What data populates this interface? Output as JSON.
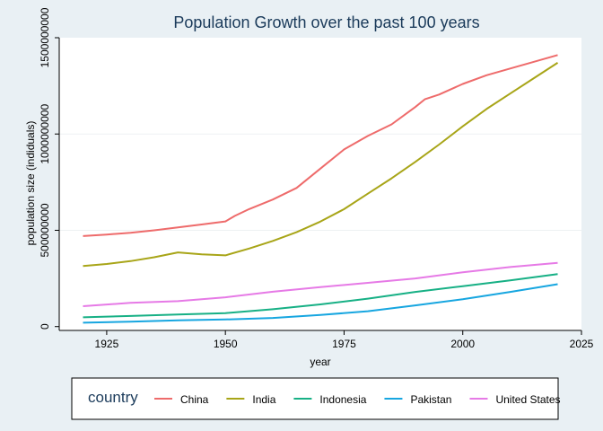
{
  "chart_data": {
    "type": "line",
    "title": "Population Growth over the past 100 years",
    "xlabel": "year",
    "ylabel": "population size (indiduals)",
    "xlim": [
      1915,
      2025
    ],
    "ylim": [
      -20000000,
      1500000000
    ],
    "x_ticks": [
      1925,
      1950,
      1975,
      2000,
      2025
    ],
    "y_ticks": [
      0,
      500000000,
      1000000000,
      1500000000
    ],
    "y_tick_labels": [
      "0",
      "500000000",
      "1000000000",
      "1500000000"
    ],
    "grid": true,
    "legend": {
      "title": "country",
      "position": "bottom"
    },
    "series": [
      {
        "name": "China",
        "color": "#ee6b6b",
        "points": [
          [
            1920,
            470000000
          ],
          [
            1925,
            478000000
          ],
          [
            1930,
            487000000
          ],
          [
            1935,
            500000000
          ],
          [
            1940,
            515000000
          ],
          [
            1945,
            530000000
          ],
          [
            1950,
            546000000
          ],
          [
            1952,
            575000000
          ],
          [
            1955,
            610000000
          ],
          [
            1960,
            660000000
          ],
          [
            1965,
            720000000
          ],
          [
            1970,
            820000000
          ],
          [
            1975,
            920000000
          ],
          [
            1980,
            990000000
          ],
          [
            1985,
            1050000000
          ],
          [
            1990,
            1140000000
          ],
          [
            1992,
            1180000000
          ],
          [
            1995,
            1205000000
          ],
          [
            2000,
            1260000000
          ],
          [
            2005,
            1305000000
          ],
          [
            2010,
            1340000000
          ],
          [
            2015,
            1375000000
          ],
          [
            2020,
            1410000000
          ]
        ]
      },
      {
        "name": "India",
        "color": "#a8a518",
        "points": [
          [
            1920,
            315000000
          ],
          [
            1925,
            325000000
          ],
          [
            1930,
            340000000
          ],
          [
            1935,
            360000000
          ],
          [
            1940,
            385000000
          ],
          [
            1945,
            375000000
          ],
          [
            1950,
            370000000
          ],
          [
            1955,
            405000000
          ],
          [
            1960,
            445000000
          ],
          [
            1965,
            490000000
          ],
          [
            1970,
            545000000
          ],
          [
            1975,
            610000000
          ],
          [
            1980,
            690000000
          ],
          [
            1985,
            770000000
          ],
          [
            1990,
            855000000
          ],
          [
            1995,
            945000000
          ],
          [
            2000,
            1040000000
          ],
          [
            2005,
            1130000000
          ],
          [
            2010,
            1210000000
          ],
          [
            2015,
            1290000000
          ],
          [
            2020,
            1370000000
          ]
        ]
      },
      {
        "name": "Indonesia",
        "color": "#17b085",
        "points": [
          [
            1920,
            48000000
          ],
          [
            1930,
            55000000
          ],
          [
            1940,
            63000000
          ],
          [
            1950,
            70000000
          ],
          [
            1960,
            90000000
          ],
          [
            1970,
            115000000
          ],
          [
            1980,
            145000000
          ],
          [
            1990,
            180000000
          ],
          [
            2000,
            210000000
          ],
          [
            2010,
            240000000
          ],
          [
            2020,
            273000000
          ]
        ]
      },
      {
        "name": "Pakistan",
        "color": "#17a6e0",
        "points": [
          [
            1920,
            20000000
          ],
          [
            1930,
            25000000
          ],
          [
            1940,
            32000000
          ],
          [
            1950,
            37000000
          ],
          [
            1960,
            45000000
          ],
          [
            1970,
            60000000
          ],
          [
            1980,
            80000000
          ],
          [
            1990,
            110000000
          ],
          [
            2000,
            142000000
          ],
          [
            2010,
            180000000
          ],
          [
            2020,
            220000000
          ]
        ]
      },
      {
        "name": "United States",
        "color": "#e67ae6",
        "points": [
          [
            1920,
            106000000
          ],
          [
            1930,
            123000000
          ],
          [
            1940,
            132000000
          ],
          [
            1950,
            152000000
          ],
          [
            1960,
            181000000
          ],
          [
            1970,
            205000000
          ],
          [
            1980,
            227000000
          ],
          [
            1990,
            250000000
          ],
          [
            2000,
            282000000
          ],
          [
            2010,
            309000000
          ],
          [
            2020,
            331000000
          ]
        ]
      }
    ]
  }
}
